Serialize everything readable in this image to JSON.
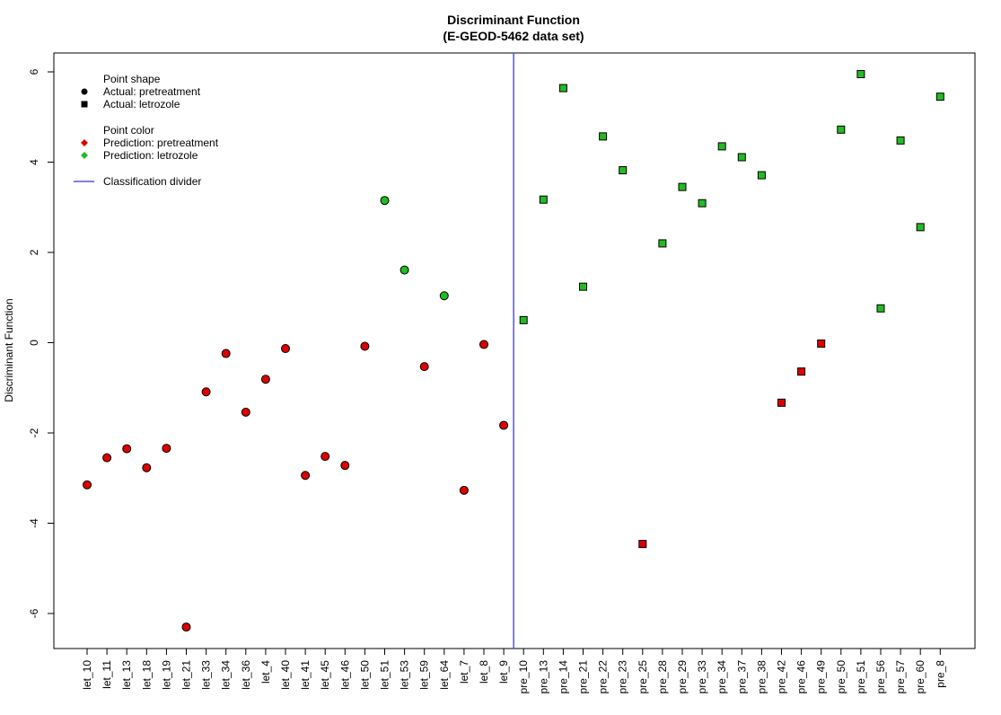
{
  "chart_data": {
    "type": "scatter",
    "title": "Discriminant Function",
    "subtitle": "(E-GEOD-5462 data set)",
    "xlabel": "",
    "ylabel": "Discriminant Function",
    "ylim": [
      -6.8,
      6.4
    ],
    "yticks": [
      -6,
      -4,
      -2,
      0,
      2,
      4,
      6
    ],
    "ytick_labels": [
      "-6",
      "-4",
      "-2",
      "0",
      "2",
      "4",
      "6"
    ],
    "grid": false,
    "legend_position": "top-left",
    "legend": {
      "shape_heading": "Point shape",
      "shape_items": [
        {
          "label": "Actual: pretreatment",
          "shape": "circle"
        },
        {
          "label": "Actual: letrozole",
          "shape": "square"
        }
      ],
      "color_heading": "Point color",
      "color_items": [
        {
          "label": "Prediction: pretreatment",
          "color": "#dd0000"
        },
        {
          "label": "Prediction: letrozole",
          "color": "#22bb22"
        }
      ],
      "divider_label": "Classification divider"
    },
    "colors": {
      "pretreatment": "#dd0000",
      "letrozole": "#22bb22",
      "divider": "#5555dd"
    },
    "divider_between": [
      "let_9",
      "pre_10"
    ],
    "points": [
      {
        "sample": "let_10",
        "value": -3.15,
        "actual": "pretreatment",
        "predicted": "pretreatment"
      },
      {
        "sample": "let_11",
        "value": -2.55,
        "actual": "pretreatment",
        "predicted": "pretreatment"
      },
      {
        "sample": "let_13",
        "value": -2.35,
        "actual": "pretreatment",
        "predicted": "pretreatment"
      },
      {
        "sample": "let_18",
        "value": -2.77,
        "actual": "pretreatment",
        "predicted": "pretreatment"
      },
      {
        "sample": "let_19",
        "value": -2.34,
        "actual": "pretreatment",
        "predicted": "pretreatment"
      },
      {
        "sample": "let_21",
        "value": -6.3,
        "actual": "pretreatment",
        "predicted": "pretreatment"
      },
      {
        "sample": "let_33",
        "value": -1.09,
        "actual": "pretreatment",
        "predicted": "pretreatment"
      },
      {
        "sample": "let_34",
        "value": -0.24,
        "actual": "pretreatment",
        "predicted": "pretreatment"
      },
      {
        "sample": "let_36",
        "value": -1.54,
        "actual": "pretreatment",
        "predicted": "pretreatment"
      },
      {
        "sample": "let_4",
        "value": -0.81,
        "actual": "pretreatment",
        "predicted": "pretreatment"
      },
      {
        "sample": "let_40",
        "value": -0.13,
        "actual": "pretreatment",
        "predicted": "pretreatment"
      },
      {
        "sample": "let_41",
        "value": -2.94,
        "actual": "pretreatment",
        "predicted": "pretreatment"
      },
      {
        "sample": "let_45",
        "value": -2.52,
        "actual": "pretreatment",
        "predicted": "pretreatment"
      },
      {
        "sample": "let_46",
        "value": -2.72,
        "actual": "pretreatment",
        "predicted": "pretreatment"
      },
      {
        "sample": "let_50",
        "value": -0.08,
        "actual": "pretreatment",
        "predicted": "pretreatment"
      },
      {
        "sample": "let_51",
        "value": 3.15,
        "actual": "pretreatment",
        "predicted": "letrozole"
      },
      {
        "sample": "let_53",
        "value": 1.61,
        "actual": "pretreatment",
        "predicted": "letrozole"
      },
      {
        "sample": "let_59",
        "value": -0.53,
        "actual": "pretreatment",
        "predicted": "pretreatment"
      },
      {
        "sample": "let_64",
        "value": 1.04,
        "actual": "pretreatment",
        "predicted": "letrozole"
      },
      {
        "sample": "let_7",
        "value": -3.27,
        "actual": "pretreatment",
        "predicted": "pretreatment"
      },
      {
        "sample": "let_8",
        "value": -0.04,
        "actual": "pretreatment",
        "predicted": "pretreatment"
      },
      {
        "sample": "let_9",
        "value": -1.83,
        "actual": "pretreatment",
        "predicted": "pretreatment"
      },
      {
        "sample": "pre_10",
        "value": 0.5,
        "actual": "letrozole",
        "predicted": "letrozole"
      },
      {
        "sample": "pre_13",
        "value": 3.17,
        "actual": "letrozole",
        "predicted": "letrozole"
      },
      {
        "sample": "pre_14",
        "value": 5.64,
        "actual": "letrozole",
        "predicted": "letrozole"
      },
      {
        "sample": "pre_21",
        "value": 1.24,
        "actual": "letrozole",
        "predicted": "letrozole"
      },
      {
        "sample": "pre_22",
        "value": 4.57,
        "actual": "letrozole",
        "predicted": "letrozole"
      },
      {
        "sample": "pre_23",
        "value": 3.82,
        "actual": "letrozole",
        "predicted": "letrozole"
      },
      {
        "sample": "pre_25",
        "value": -4.46,
        "actual": "letrozole",
        "predicted": "pretreatment"
      },
      {
        "sample": "pre_28",
        "value": 2.2,
        "actual": "letrozole",
        "predicted": "letrozole"
      },
      {
        "sample": "pre_29",
        "value": 3.45,
        "actual": "letrozole",
        "predicted": "letrozole"
      },
      {
        "sample": "pre_33",
        "value": 3.09,
        "actual": "letrozole",
        "predicted": "letrozole"
      },
      {
        "sample": "pre_34",
        "value": 4.35,
        "actual": "letrozole",
        "predicted": "letrozole"
      },
      {
        "sample": "pre_37",
        "value": 4.11,
        "actual": "letrozole",
        "predicted": "letrozole"
      },
      {
        "sample": "pre_38",
        "value": 3.71,
        "actual": "letrozole",
        "predicted": "letrozole"
      },
      {
        "sample": "pre_42",
        "value": -1.33,
        "actual": "letrozole",
        "predicted": "pretreatment"
      },
      {
        "sample": "pre_46",
        "value": -0.64,
        "actual": "letrozole",
        "predicted": "pretreatment"
      },
      {
        "sample": "pre_49",
        "value": -0.02,
        "actual": "letrozole",
        "predicted": "pretreatment"
      },
      {
        "sample": "pre_50",
        "value": 4.72,
        "actual": "letrozole",
        "predicted": "letrozole"
      },
      {
        "sample": "pre_51",
        "value": 5.95,
        "actual": "letrozole",
        "predicted": "letrozole"
      },
      {
        "sample": "pre_56",
        "value": 0.76,
        "actual": "letrozole",
        "predicted": "letrozole"
      },
      {
        "sample": "pre_57",
        "value": 4.48,
        "actual": "letrozole",
        "predicted": "letrozole"
      },
      {
        "sample": "pre_60",
        "value": 2.56,
        "actual": "letrozole",
        "predicted": "letrozole"
      },
      {
        "sample": "pre_8",
        "value": 5.45,
        "actual": "letrozole",
        "predicted": "letrozole"
      }
    ]
  }
}
